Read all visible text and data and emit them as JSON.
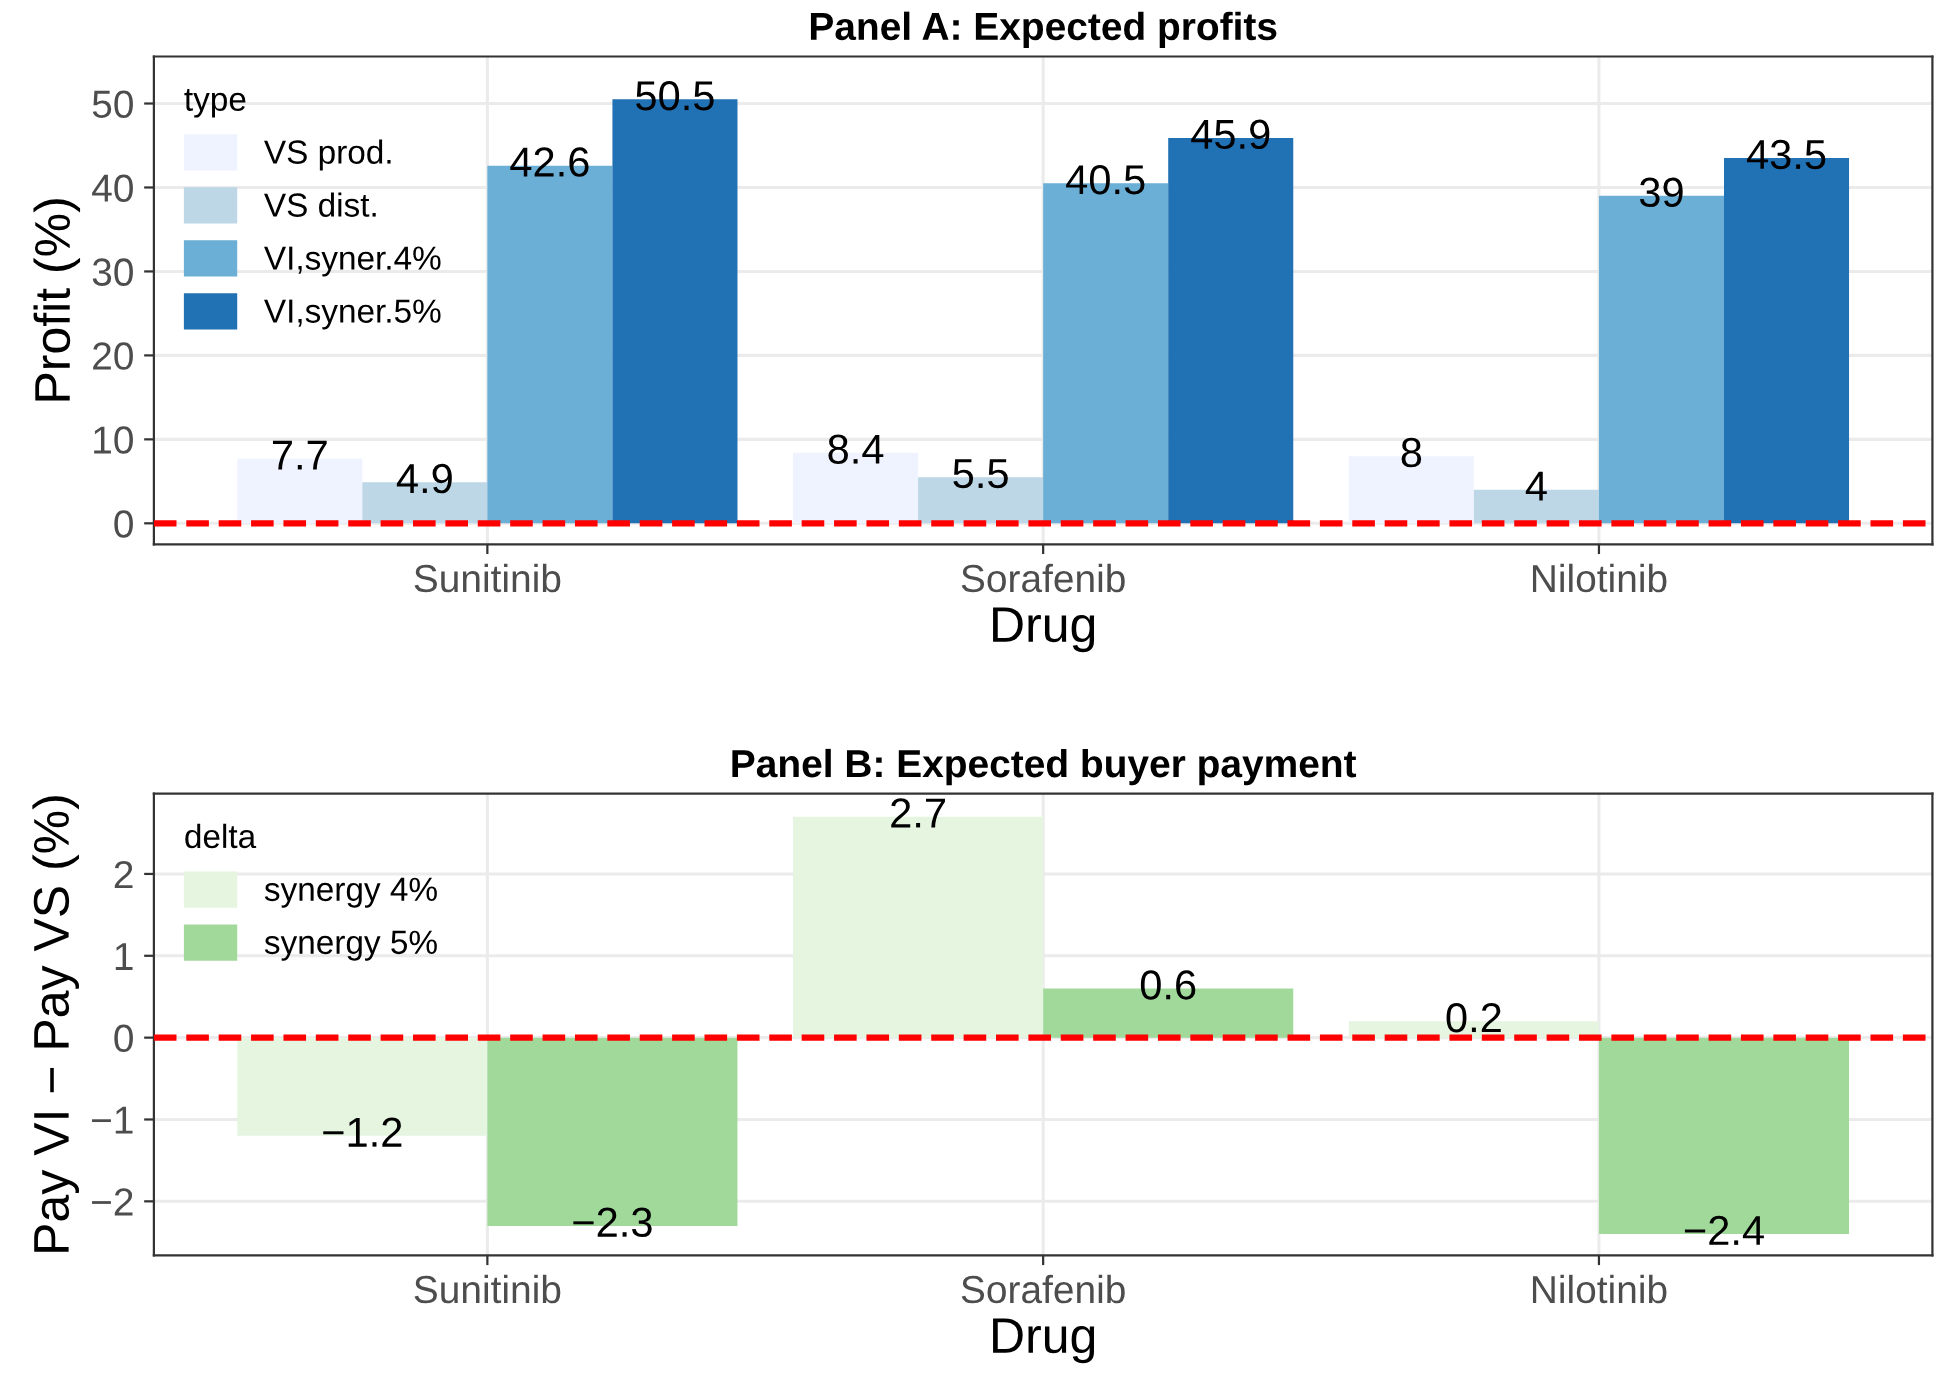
{
  "chart_data": [
    {
      "type": "bar",
      "title": "Panel A: Expected profits",
      "xlabel": "Drug",
      "ylabel": "Profit (%)",
      "legend_title": "type",
      "legend": "top left",
      "grid": true,
      "data_labels": true,
      "categories": [
        "Sunitinib",
        "Sorafenib",
        "Nilotinib"
      ],
      "ylim": [
        -2.5,
        55.6
      ],
      "yticks": [
        0,
        10,
        20,
        30,
        40,
        50
      ],
      "series": [
        {
          "name": "VS prod.",
          "color": "#eff3ff",
          "values": [
            7.7,
            8.4,
            8
          ]
        },
        {
          "name": "VS dist.",
          "color": "#bdd7e7",
          "values": [
            4.9,
            5.5,
            4
          ]
        },
        {
          "name": "VI,syner.4%",
          "color": "#6baed6",
          "values": [
            42.6,
            40.5,
            39
          ]
        },
        {
          "name": "VI,syner.5%",
          "color": "#2171b5",
          "values": [
            50.5,
            45.9,
            43.5
          ]
        }
      ],
      "ref_lines": [
        {
          "axis": "y",
          "value": 0,
          "color": "#ff0000",
          "line_style": "dashed"
        }
      ]
    },
    {
      "type": "bar",
      "title": "Panel B: Expected buyer payment",
      "xlabel": "Drug",
      "ylabel": "Pay VI − Pay VS (%)",
      "legend_title": "delta",
      "legend": "top left",
      "grid": true,
      "data_labels": true,
      "categories": [
        "Sunitinib",
        "Sorafenib",
        "Nilotinib"
      ],
      "ylim": [
        -2.66,
        2.98
      ],
      "yticks": [
        {
          "value": -2,
          "label": "−2"
        },
        {
          "value": -1,
          "label": "−1"
        },
        0,
        1,
        2
      ],
      "series": [
        {
          "name": "synergy 4%",
          "color": "#e5f5e0",
          "values": [
            -1.2,
            2.7,
            0.2
          ]
        },
        {
          "name": "synergy 5%",
          "color": "#a1d99b",
          "values": [
            -2.3,
            0.6,
            -2.4
          ]
        }
      ],
      "ref_lines": [
        {
          "axis": "y",
          "value": 0,
          "color": "#ff0000",
          "line_style": "dashed"
        }
      ]
    }
  ]
}
